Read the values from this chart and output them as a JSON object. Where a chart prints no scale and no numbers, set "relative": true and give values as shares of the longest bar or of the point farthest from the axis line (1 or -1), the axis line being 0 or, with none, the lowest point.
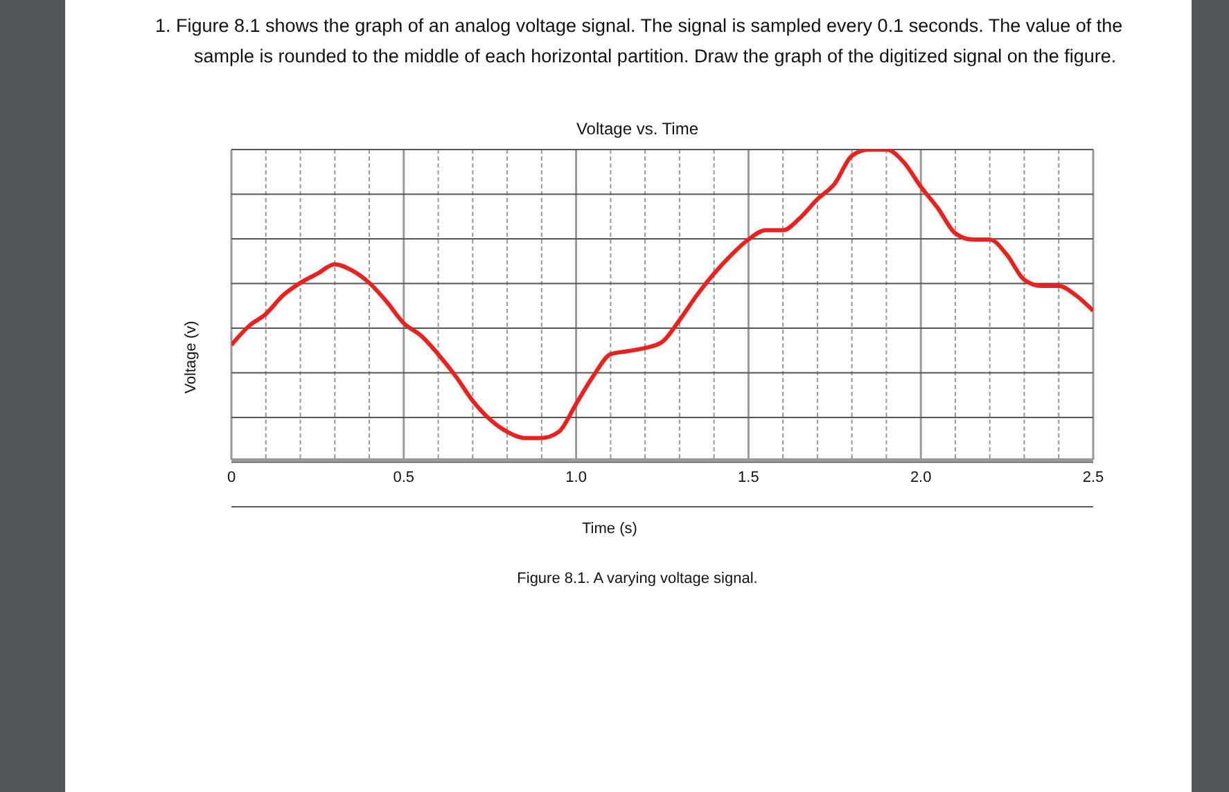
{
  "chart_data": {
    "type": "line",
    "title": "Voltage vs. Time",
    "xlabel": "Time (s)",
    "ylabel": "Voltage (v)",
    "relative": true,
    "grid": true,
    "tick_labels": "x",
    "annotations": [
      "1. Figure 8.1 shows the graph of an analog voltage signal. The signal is sampled every 0.1 seconds. The value of the sample is rounded to the middle of each horizontal partition. Draw the graph of the digitized signal on the figure.",
      "Figure 8.1. A varying voltage signal."
    ],
    "xlim": [
      0,
      2.5
    ],
    "xticks": [
      0,
      {
        "value": 0.1,
        "label": null
      },
      {
        "value": 0.2,
        "label": null
      },
      {
        "value": 0.3,
        "label": null
      },
      {
        "value": 0.4,
        "label": null
      },
      0.5,
      {
        "value": 0.6,
        "label": null
      },
      {
        "value": 0.7,
        "label": null
      },
      {
        "value": 0.8,
        "label": null
      },
      {
        "value": 0.9,
        "label": null
      },
      {
        "value": 1,
        "label": "1.0"
      },
      {
        "value": 1.1,
        "label": null
      },
      {
        "value": 1.2,
        "label": null
      },
      {
        "value": 1.3,
        "label": null
      },
      {
        "value": 1.4,
        "label": null
      },
      1.5,
      {
        "value": 1.6,
        "label": null
      },
      {
        "value": 1.7,
        "label": null
      },
      {
        "value": 1.8,
        "label": null
      },
      {
        "value": 1.9,
        "label": null
      },
      {
        "value": 2,
        "label": "2.0"
      },
      {
        "value": 2.1,
        "label": null
      },
      {
        "value": 2.2,
        "label": null
      },
      {
        "value": 2.3,
        "label": null
      },
      {
        "value": 2.4,
        "label": null
      },
      2.5
    ],
    "x": [
      0,
      0.05,
      0.1,
      0.15,
      0.2,
      0.25,
      0.3,
      0.35,
      0.4,
      0.45,
      0.5,
      0.55,
      0.6,
      0.65,
      0.7,
      0.75,
      0.8,
      0.85,
      0.9,
      0.95,
      1,
      1.05,
      1.1,
      1.15,
      1.2,
      1.25,
      1.3,
      1.35,
      1.4,
      1.45,
      1.5,
      1.55,
      1.6,
      1.65,
      1.7,
      1.75,
      1.8,
      1.85,
      1.9,
      1.95,
      2,
      2.05,
      2.1,
      2.15,
      2.2,
      2.25,
      2.3,
      2.35,
      2.4,
      2.45,
      2.5
    ],
    "series": [
      {
        "color": "#e8221f",
        "values": [
          0.37,
          0.43,
          0.47,
          0.53,
          0.57,
          0.6,
          0.63,
          0.61,
          0.57,
          0.51,
          0.44,
          0.4,
          0.34,
          0.27,
          0.19,
          0.13,
          0.09,
          0.07,
          0.07,
          0.09,
          0.18,
          0.27,
          0.34,
          0.35,
          0.36,
          0.38,
          0.45,
          0.53,
          0.6,
          0.66,
          0.71,
          0.74,
          0.74,
          0.78,
          0.84,
          0.89,
          0.98,
          1,
          1,
          0.96,
          0.88,
          0.81,
          0.73,
          0.71,
          0.71,
          0.66,
          0.58,
          0.56,
          0.56,
          0.53,
          0.48
        ]
      }
    ]
  }
}
